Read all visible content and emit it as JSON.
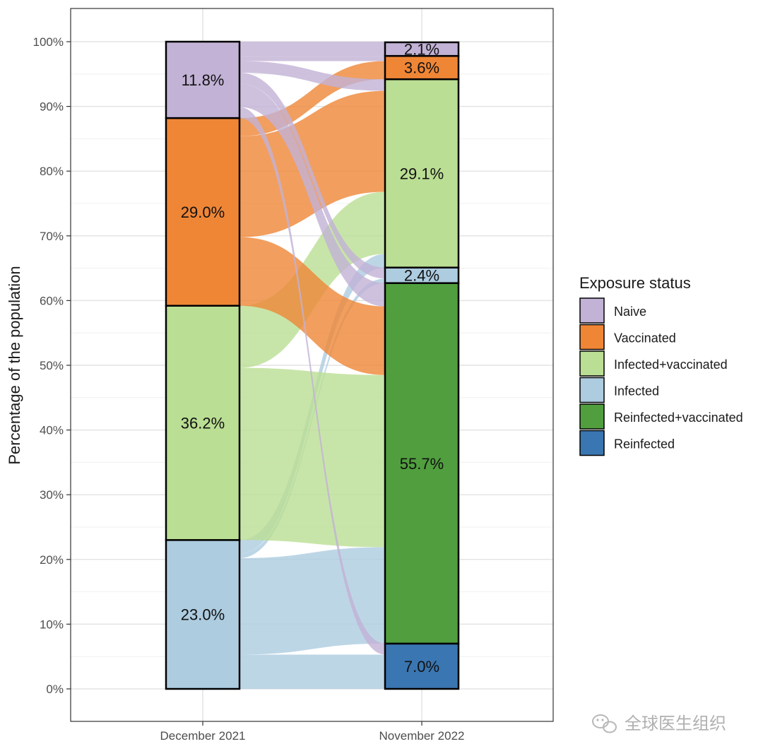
{
  "chart_data": {
    "type": "alluvial",
    "ylabel": "Percentage of the population",
    "y_ticks": [
      "0%",
      "10%",
      "20%",
      "30%",
      "40%",
      "50%",
      "60%",
      "70%",
      "80%",
      "90%",
      "100%"
    ],
    "ylim": [
      0,
      100
    ],
    "legend": {
      "title": "Exposure status",
      "placement": "right",
      "items": [
        {
          "name": "Naive",
          "color": "#c2b2d6"
        },
        {
          "name": "Vaccinated",
          "color": "#ef8636"
        },
        {
          "name": "Infected+vaccinated",
          "color": "#bade93"
        },
        {
          "name": "Infected",
          "color": "#adcce0"
        },
        {
          "name": "Reinfected+vaccinated",
          "color": "#519e3e"
        },
        {
          "name": "Reinfected",
          "color": "#3a76b1"
        }
      ]
    },
    "axes": [
      {
        "name": "December 2021",
        "strata": [
          {
            "status": "Infected",
            "value": 23.0,
            "label": "23.0%"
          },
          {
            "status": "Infected+vaccinated",
            "value": 36.2,
            "label": "36.2%"
          },
          {
            "status": "Vaccinated",
            "value": 29.0,
            "label": "29.0%"
          },
          {
            "status": "Naive",
            "value": 11.8,
            "label": "11.8%"
          }
        ]
      },
      {
        "name": "November 2022",
        "strata": [
          {
            "status": "Reinfected",
            "value": 7.0,
            "label": "7.0%"
          },
          {
            "status": "Reinfected+vaccinated",
            "value": 55.7,
            "label": "55.7%"
          },
          {
            "status": "Infected",
            "value": 2.4,
            "label": "2.4%"
          },
          {
            "status": "Infected+vaccinated",
            "value": 29.1,
            "label": "29.1%"
          },
          {
            "status": "Vaccinated",
            "value": 3.6,
            "label": "3.6%"
          },
          {
            "status": "Naive",
            "value": 2.1,
            "label": "2.1%"
          }
        ]
      }
    ],
    "flows": [
      {
        "from": "Infected",
        "to": "Reinfected",
        "value": 5.3
      },
      {
        "from": "Infected",
        "to": "Reinfected+vaccinated",
        "value": 14.9
      },
      {
        "from": "Infected",
        "to": "Infected",
        "value": 0.7
      },
      {
        "from": "Infected",
        "to": "Infected+vaccinated",
        "value": 2.1
      },
      {
        "from": "Infected+vaccinated",
        "to": "Reinfected+vaccinated",
        "value": 26.6
      },
      {
        "from": "Infected+vaccinated",
        "to": "Infected+vaccinated",
        "value": 9.6
      },
      {
        "from": "Vaccinated",
        "to": "Reinfected+vaccinated",
        "value": 10.6
      },
      {
        "from": "Vaccinated",
        "to": "Infected+vaccinated",
        "value": 15.6
      },
      {
        "from": "Vaccinated",
        "to": "Vaccinated",
        "value": 2.8
      },
      {
        "from": "Naive",
        "to": "Reinfected",
        "value": 1.7
      },
      {
        "from": "Naive",
        "to": "Reinfected+vaccinated",
        "value": 3.6
      },
      {
        "from": "Naive",
        "to": "Infected",
        "value": 1.7
      },
      {
        "from": "Naive",
        "to": "Infected+vaccinated",
        "value": 1.8
      },
      {
        "from": "Naive",
        "to": "Vaccinated",
        "value": 0.8
      },
      {
        "from": "Naive",
        "to": "Naive",
        "value": 2.2
      }
    ]
  },
  "watermark": {
    "text": "全球医生组织",
    "icon": "wechat-icon"
  }
}
